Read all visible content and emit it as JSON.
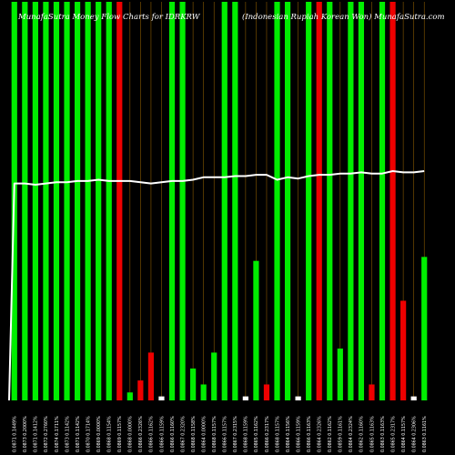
{
  "header": {
    "title_left": "MunafaSutra Money Flow Charts for IDRKRW",
    "title_right": "(Indonesian Rupiah Korean Won) MunafaSutra.com"
  },
  "colors": {
    "background": "#000000",
    "up": "#00ee00",
    "down": "#ee0000",
    "line": "#ffffff",
    "guide": "#8a5a00"
  },
  "chart_data": {
    "type": "bar",
    "title": "MunafaSutra Money Flow Charts for IDRKRW",
    "subtitle": "(Indonesian Rupiah Korean Won) MunafaSutra.com",
    "ylim": [
      0,
      100
    ],
    "grid": true,
    "x": [
      "Tue 31 Dec 2024",
      "Mon 30 Dec 2024",
      "Fri 27 Dec 2024",
      "Thu 26 Dec 2024",
      "Wed 25 Dec 2024",
      "Tue 24 Dec 2024",
      "Mon 23 Dec 2024",
      "Fri 20 Dec 2024",
      "Thu 19 Dec 2024",
      "Wed 18 Dec 2024",
      "Tue 17 Dec 2024",
      "Mon 16 Dec 2024",
      "Fri 13 Dec 2024",
      "Thu 12 Dec 2024",
      "Wed 11 Dec 2024",
      "Tue 10 Dec 2024",
      "Mon 09 Dec 2024",
      "Fri 06 Dec 2024",
      "Thu 05 Dec 2024",
      "Wed 04 Dec 2024",
      "Tue 03 Dec 2024",
      "Mon 02 Dec 2024",
      "Fri 29 Nov 2024",
      "Thu 28 Nov 2024",
      "Wed 27 Nov 2024",
      "Tue 26 Nov 2024",
      "Mon 25 Nov 2024",
      "Fri 22 Nov 2024",
      "Thu 21 Nov 2024",
      "Wed 20 Nov 2024",
      "Tue 19 Nov 2024",
      "Mon 18 Nov 2024",
      "Fri 15 Nov 2024",
      "Thu 14 Nov 2024",
      "Wed 13 Nov 2024",
      "Tue 12 Nov 2024",
      "Mon 11 Nov 2024",
      "Fri 08 Nov 2024",
      "Thu 07 Nov 2024",
      "Wed 06 Nov 2024"
    ],
    "tick_labels": [
      "0.0871 0.1449%",
      "0.0873 0.2000%",
      "0.0871 0.1412%",
      "0.0872 0.2760%",
      "0.0874 0.1711%",
      "0.0873 0.1142%",
      "0.0871 0.1142%",
      "0.0870 0.1714%",
      "0.0869 0.0000%",
      "0.0868 0.1154%",
      "0.0869 0.1157%",
      "0.0868 0.0000%",
      "0.0866 0.2326%",
      "0.0866 0.1162%",
      "0.0866 0.1159%",
      "0.0866 0.1160%",
      "0.0867 0.2320%",
      "0.0868 0.1158%",
      "0.0864 0.0000%",
      "0.0868 0.1157%",
      "0.0866 0.1157%",
      "0.0867 0.2315%",
      "0.0868 0.1159%",
      "0.0865 0.1162%",
      "0.0866 0.2317%",
      "0.0868 0.1157%",
      "0.0864 0.1156%",
      "0.0866 0.1159%",
      "0.0866 0.1163%",
      "0.0864 0.2326%",
      "0.0862 0.1162%",
      "0.0859 0.1161%",
      "0.0864 0.2324%",
      "0.0862 0.1160%",
      "0.0865 0.1163%",
      "0.0863 0.1163%",
      "0.0865 0.2317%",
      "0.0864 0.1157%",
      "0.0864 0.2306%",
      "0.0863 0.1161%"
    ],
    "series": [
      {
        "role": "volume_bars",
        "values": [
          100,
          100,
          100,
          100,
          100,
          100,
          100,
          100,
          100,
          100,
          100,
          2,
          5,
          12,
          1,
          100,
          100,
          8,
          4,
          12,
          100,
          100,
          1,
          35,
          4,
          100,
          100,
          1,
          100,
          100,
          100,
          13,
          100,
          100,
          4,
          100,
          100,
          25,
          1,
          36
        ],
        "colors": [
          "green",
          "green",
          "green",
          "green",
          "green",
          "green",
          "green",
          "green",
          "green",
          "green",
          "red",
          "green",
          "red",
          "red",
          "green",
          "green",
          "green",
          "green",
          "green",
          "green",
          "green",
          "green",
          "green",
          "green",
          "red",
          "green",
          "green",
          "green",
          "green",
          "red",
          "green",
          "green",
          "green",
          "green",
          "red",
          "green",
          "red",
          "red",
          "green",
          "green"
        ]
      },
      {
        "role": "price_line",
        "values": [
          0.0871,
          0.0871,
          0.087,
          0.0871,
          0.0872,
          0.0872,
          0.0873,
          0.0873,
          0.0874,
          0.0873,
          0.0873,
          0.0873,
          0.0872,
          0.0871,
          0.0872,
          0.0873,
          0.0873,
          0.0874,
          0.0876,
          0.0876,
          0.0876,
          0.0877,
          0.0877,
          0.0878,
          0.0878,
          0.0874,
          0.0876,
          0.0875,
          0.0877,
          0.0878,
          0.0878,
          0.0879,
          0.0879,
          0.088,
          0.0879,
          0.0879,
          0.0881,
          0.088,
          0.088,
          0.0881
        ]
      }
    ]
  }
}
